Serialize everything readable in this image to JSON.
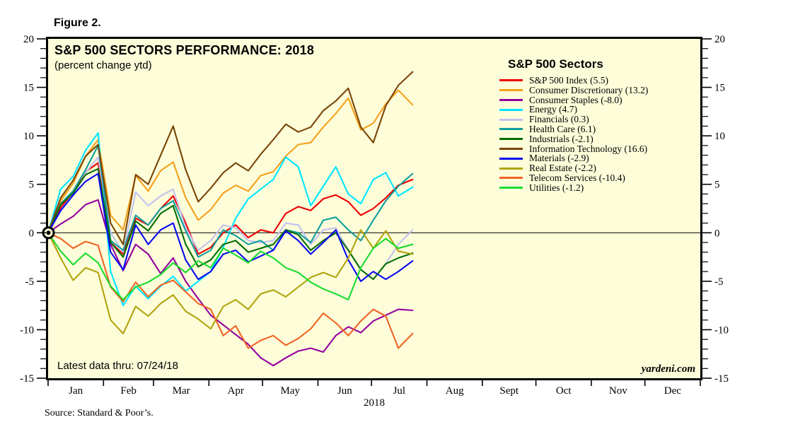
{
  "figure_label": "Figure 2.",
  "chart": {
    "title": "S&P 500 SECTORS PERFORMANCE: 2018",
    "subtitle": "(percent change ytd)",
    "note": "Latest data thru: 07/24/18",
    "watermark": "yardeni.com",
    "source": "Source: Standard & Poor’s.",
    "year_label": "2018",
    "background_color": "#FDFDDA"
  },
  "legend": {
    "header": "S&P 500 Sectors"
  },
  "chart_data": {
    "type": "line",
    "title": "S&P 500 SECTORS PERFORMANCE: 2018",
    "subtitle": "(percent change ytd)",
    "ylabel": "percent change ytd",
    "ylim": [
      -15,
      20
    ],
    "y_major_ticks": [
      -15,
      -10,
      -5,
      0,
      5,
      10,
      15,
      20
    ],
    "y_minor_step": 1,
    "grid": "zero-line-only",
    "legend_position": "inside-right",
    "x_months": [
      "Jan",
      "Feb",
      "Mar",
      "Apr",
      "May",
      "Jun",
      "Jul",
      "Aug",
      "Sept",
      "Oct",
      "Nov",
      "Dec"
    ],
    "x_month_day_counts": [
      31,
      28,
      31,
      30,
      31,
      30,
      31,
      31,
      30,
      31,
      30,
      31
    ],
    "x_total_days": 365,
    "x_days": [
      0,
      7,
      14,
      21,
      28,
      35,
      42,
      49,
      56,
      63,
      70,
      77,
      84,
      91,
      98,
      105,
      112,
      119,
      126,
      133,
      140,
      147,
      154,
      161,
      168,
      175,
      182,
      189,
      196,
      204
    ],
    "series": [
      {
        "name": "S&P 500 Index (5.5)",
        "color": "#EE0000",
        "values": [
          0,
          2.6,
          4.2,
          6.3,
          7.2,
          -1.0,
          -2.2,
          1.5,
          0.8,
          2.5,
          3.8,
          1.0,
          -2.2,
          -1.5,
          0.0,
          0.8,
          -0.5,
          0.3,
          0.0,
          2.0,
          2.7,
          2.3,
          3.5,
          3.9,
          3.2,
          1.8,
          2.5,
          3.6,
          4.9,
          5.5
        ]
      },
      {
        "name": "Consumer Discretionary (13.2)",
        "color": "#F5A01A",
        "values": [
          0,
          3.3,
          5.1,
          7.9,
          9.6,
          1.8,
          0.3,
          5.9,
          4.3,
          6.4,
          7.3,
          3.6,
          1.3,
          2.4,
          4.1,
          4.9,
          4.3,
          5.9,
          6.3,
          7.9,
          9.1,
          9.3,
          10.9,
          12.3,
          13.9,
          10.6,
          11.3,
          13.3,
          14.7,
          13.2
        ]
      },
      {
        "name": "Consumer Staples (-8.0)",
        "color": "#93009E",
        "values": [
          0,
          0.9,
          1.7,
          2.9,
          3.4,
          -1.2,
          -3.9,
          -1.2,
          -2.2,
          -4.2,
          -2.6,
          -5.0,
          -6.8,
          -8.5,
          -9.5,
          -10.5,
          -11.5,
          -12.9,
          -13.7,
          -12.9,
          -12.2,
          -11.9,
          -12.3,
          -10.6,
          -9.7,
          -10.3,
          -9.1,
          -8.5,
          -7.9,
          -8.0
        ]
      },
      {
        "name": "Energy (4.7)",
        "color": "#00E5FF",
        "values": [
          0,
          4.5,
          5.8,
          8.5,
          10.3,
          -4.0,
          -7.5,
          -5.5,
          -6.8,
          -5.5,
          -4.5,
          -6.0,
          -5.0,
          -4.0,
          -1.5,
          1.5,
          3.5,
          4.5,
          5.5,
          7.8,
          6.8,
          2.8,
          4.8,
          6.8,
          4.0,
          3.0,
          5.5,
          6.2,
          3.8,
          4.7
        ]
      },
      {
        "name": "Financials (0.3)",
        "color": "#C2C2F0",
        "values": [
          0,
          2.2,
          3.8,
          6.2,
          7.8,
          0.0,
          -2.0,
          4.2,
          2.8,
          3.8,
          4.5,
          0.5,
          -1.8,
          -0.8,
          0.8,
          0.5,
          -0.8,
          -1.0,
          -0.8,
          1.0,
          0.8,
          -1.2,
          0.3,
          0.5,
          -1.8,
          -3.8,
          -4.8,
          -3.2,
          -1.2,
          0.3
        ]
      },
      {
        "name": "Health Care (6.1)",
        "color": "#119E9E",
        "values": [
          0,
          3.0,
          4.3,
          6.5,
          9.0,
          -0.8,
          -1.8,
          1.8,
          0.8,
          2.5,
          3.3,
          0.2,
          -2.5,
          -1.8,
          0.3,
          -0.3,
          -1.2,
          -0.8,
          -1.8,
          0.3,
          0.0,
          -1.0,
          1.3,
          1.6,
          0.3,
          -0.8,
          1.3,
          3.3,
          4.8,
          6.1
        ]
      },
      {
        "name": "Industrials (-2.1)",
        "color": "#056E05",
        "values": [
          0,
          2.9,
          4.1,
          6.0,
          6.6,
          -1.0,
          -2.5,
          1.2,
          0.2,
          2.0,
          2.8,
          -1.2,
          -3.5,
          -2.8,
          -1.2,
          -0.8,
          -2.0,
          -1.6,
          -1.2,
          0.3,
          -0.2,
          -1.8,
          -0.8,
          0.0,
          -1.8,
          -3.8,
          -4.8,
          -3.2,
          -2.6,
          -2.1
        ]
      },
      {
        "name": "Information Technology (16.6)",
        "color": "#7A4505",
        "values": [
          0,
          3.6,
          5.4,
          7.9,
          9.1,
          1.0,
          -1.2,
          6.0,
          5.0,
          8.0,
          11.0,
          6.5,
          3.2,
          4.6,
          6.2,
          7.2,
          6.4,
          8.1,
          9.6,
          11.2,
          10.4,
          10.9,
          12.6,
          13.6,
          14.9,
          10.9,
          9.3,
          13.1,
          15.2,
          16.6
        ]
      },
      {
        "name": "Materials (-2.9)",
        "color": "#0A0AF0",
        "values": [
          0,
          2.3,
          3.9,
          5.3,
          6.1,
          -2.0,
          -3.8,
          0.8,
          -1.2,
          0.3,
          1.0,
          -2.8,
          -4.8,
          -4.0,
          -2.2,
          -1.8,
          -3.0,
          -2.4,
          -1.8,
          0.2,
          -0.8,
          -2.2,
          -1.0,
          0.3,
          -2.8,
          -5.0,
          -4.0,
          -4.8,
          -4.0,
          -2.9
        ]
      },
      {
        "name": "Real Estate (-2.2)",
        "color": "#B1A40E",
        "values": [
          0,
          -2.6,
          -4.9,
          -3.6,
          -4.1,
          -9.0,
          -10.4,
          -7.6,
          -8.6,
          -7.3,
          -6.4,
          -8.1,
          -8.9,
          -9.9,
          -7.6,
          -6.9,
          -7.9,
          -6.3,
          -5.9,
          -6.6,
          -5.6,
          -4.6,
          -4.1,
          -4.6,
          -2.6,
          0.3,
          -1.6,
          0.2,
          -1.9,
          -2.2
        ]
      },
      {
        "name": "Telecom Services (-10.4)",
        "color": "#EF6424",
        "values": [
          0,
          -0.6,
          -1.6,
          -0.9,
          -1.3,
          -5.6,
          -7.1,
          -5.1,
          -6.6,
          -5.4,
          -4.9,
          -6.1,
          -7.3,
          -7.9,
          -10.6,
          -9.6,
          -11.9,
          -11.1,
          -10.6,
          -11.6,
          -10.9,
          -9.9,
          -8.3,
          -9.3,
          -10.6,
          -9.1,
          -7.9,
          -8.6,
          -11.9,
          -10.4
        ]
      },
      {
        "name": "Utilities (-1.2)",
        "color": "#1ADB2E",
        "values": [
          0,
          -1.9,
          -3.3,
          -2.1,
          -3.1,
          -5.5,
          -6.9,
          -5.6,
          -5.1,
          -4.3,
          -3.1,
          -4.1,
          -2.9,
          -3.6,
          -1.6,
          -2.3,
          -3.1,
          -1.9,
          -2.6,
          -3.6,
          -4.1,
          -5.1,
          -5.8,
          -6.3,
          -6.9,
          -3.6,
          -1.6,
          -0.6,
          -1.6,
          -1.2
        ]
      }
    ]
  }
}
